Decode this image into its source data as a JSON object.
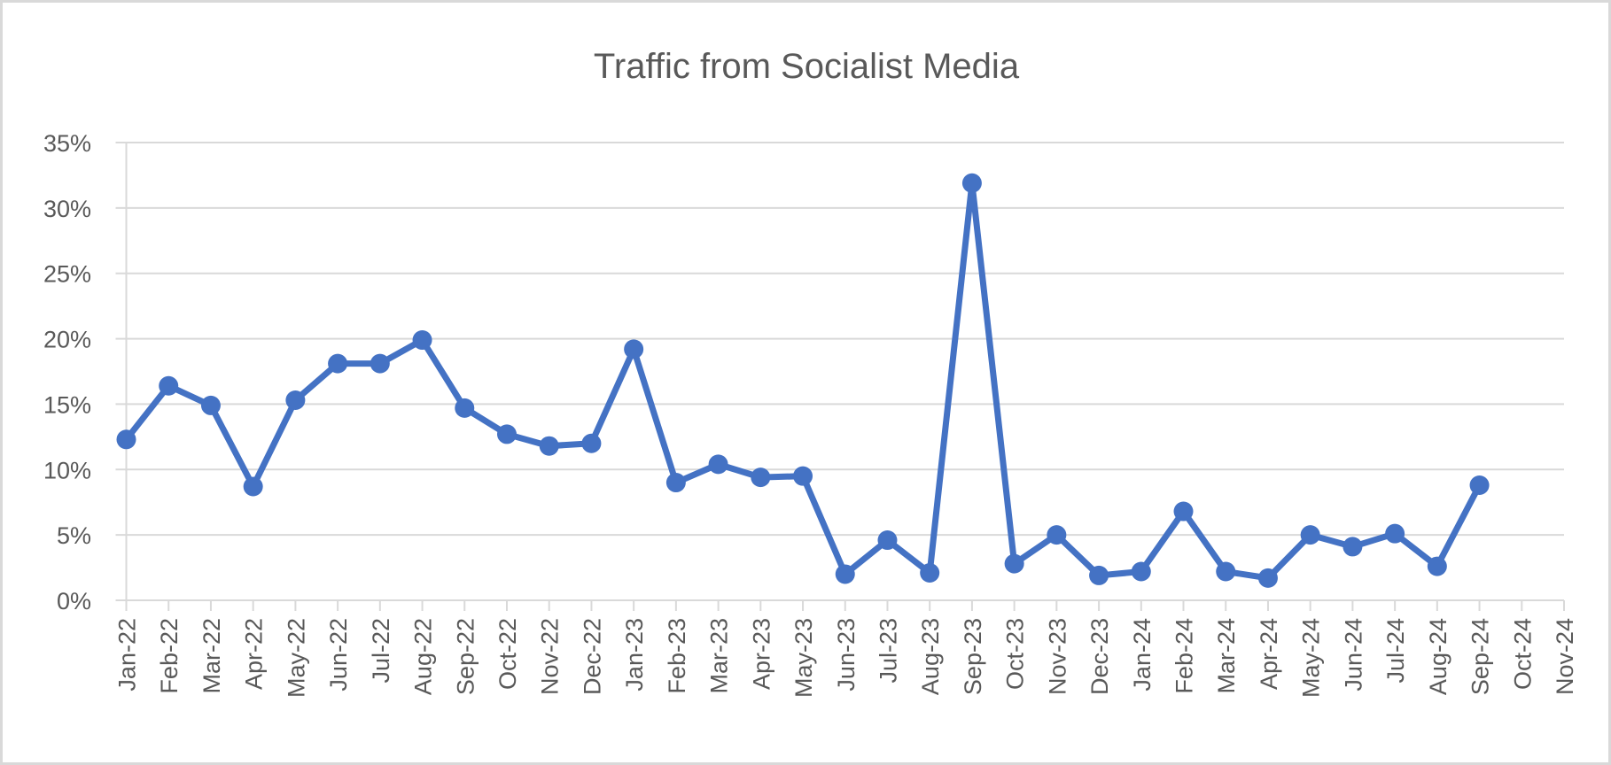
{
  "chart_data": {
    "type": "line",
    "title": "Traffic from Socialist Media",
    "xlabel": "",
    "ylabel": "",
    "categories": [
      "Jan-22",
      "Feb-22",
      "Mar-22",
      "Apr-22",
      "May-22",
      "Jun-22",
      "Jul-22",
      "Aug-22",
      "Sep-22",
      "Oct-22",
      "Nov-22",
      "Dec-22",
      "Jan-23",
      "Feb-23",
      "Mar-23",
      "Apr-23",
      "May-23",
      "Jun-23",
      "Jul-23",
      "Aug-23",
      "Sep-23",
      "Oct-23",
      "Nov-23",
      "Dec-23",
      "Jan-24",
      "Feb-24",
      "Mar-24",
      "Apr-24",
      "May-24",
      "Jun-24",
      "Jul-24",
      "Aug-24",
      "Sep-24",
      "Oct-24",
      "Nov-24"
    ],
    "series": [
      {
        "values": [
          12.3,
          16.4,
          14.9,
          8.7,
          15.3,
          18.1,
          18.1,
          19.9,
          14.7,
          12.7,
          11.8,
          12.0,
          19.2,
          9.0,
          10.4,
          9.4,
          9.5,
          2.0,
          4.6,
          2.1,
          31.9,
          2.8,
          5.0,
          1.9,
          2.2,
          6.8,
          2.2,
          1.7,
          5.0,
          4.1,
          5.1,
          2.6,
          8.8,
          null,
          null
        ],
        "color": "#4472c4"
      }
    ],
    "ylim": [
      0,
      35
    ],
    "yticks": [
      "0%",
      "5%",
      "10%",
      "15%",
      "20%",
      "25%",
      "30%",
      "35%"
    ],
    "grid": true,
    "legend": "none",
    "markers": true
  }
}
